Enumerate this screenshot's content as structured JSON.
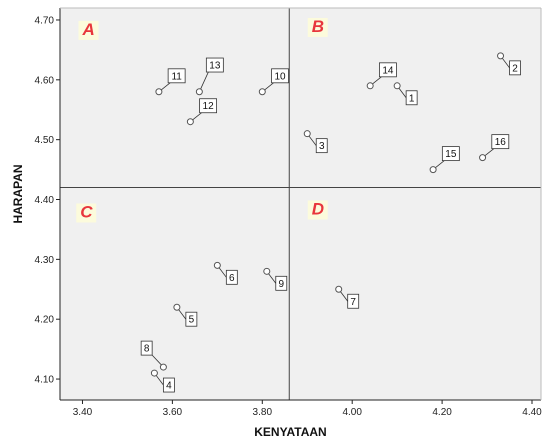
{
  "chart_data": {
    "type": "scatter",
    "xlabel": "KENYATAAN",
    "ylabel": "HARAPAN",
    "xlim": [
      3.35,
      4.42
    ],
    "ylim": [
      4.065,
      4.72
    ],
    "xticks": [
      "3.40",
      "3.60",
      "3.80",
      "4.00",
      "4.20",
      "4.40"
    ],
    "yticks": [
      "4.10",
      "4.20",
      "4.30",
      "4.40",
      "4.50",
      "4.60",
      "4.70"
    ],
    "grid": false,
    "reference_lines": {
      "x": 3.86,
      "y": 4.42
    },
    "quadrant_labels": [
      {
        "text": "A",
        "x": 3.4,
        "y": 4.675
      },
      {
        "text": "B",
        "x": 3.91,
        "y": 4.68
      },
      {
        "text": "C",
        "x": 3.395,
        "y": 4.37
      },
      {
        "text": "D",
        "x": 3.91,
        "y": 4.375
      }
    ],
    "points": [
      {
        "label": "1",
        "x": 4.1,
        "y": 4.59,
        "lx": 4.12,
        "ly": 4.57
      },
      {
        "label": "2",
        "x": 4.33,
        "y": 4.64,
        "lx": 4.35,
        "ly": 4.62
      },
      {
        "label": "3",
        "x": 3.9,
        "y": 4.51,
        "lx": 3.92,
        "ly": 4.49
      },
      {
        "label": "4",
        "x": 3.56,
        "y": 4.11,
        "lx": 3.58,
        "ly": 4.09
      },
      {
        "label": "5",
        "x": 3.61,
        "y": 4.22,
        "lx": 3.63,
        "ly": 4.2
      },
      {
        "label": "6",
        "x": 3.7,
        "y": 4.29,
        "lx": 3.72,
        "ly": 4.27
      },
      {
        "label": "7",
        "x": 3.97,
        "y": 4.25,
        "lx": 3.99,
        "ly": 4.23
      },
      {
        "label": "8",
        "x": 3.58,
        "y": 4.12,
        "lx": 3.555,
        "ly": 4.14
      },
      {
        "label": "9",
        "x": 3.81,
        "y": 4.28,
        "lx": 3.83,
        "ly": 4.26
      },
      {
        "label": "10",
        "x": 3.8,
        "y": 4.58,
        "lx": 3.825,
        "ly": 4.595
      },
      {
        "label": "11",
        "x": 3.57,
        "y": 4.58,
        "lx": 3.595,
        "ly": 4.595
      },
      {
        "label": "12",
        "x": 3.64,
        "y": 4.53,
        "lx": 3.665,
        "ly": 4.545
      },
      {
        "label": "13",
        "x": 3.66,
        "y": 4.58,
        "lx": 3.68,
        "ly": 4.613
      },
      {
        "label": "14",
        "x": 4.04,
        "y": 4.59,
        "lx": 4.065,
        "ly": 4.605
      },
      {
        "label": "15",
        "x": 4.18,
        "y": 4.45,
        "lx": 4.205,
        "ly": 4.465
      },
      {
        "label": "16",
        "x": 4.29,
        "y": 4.47,
        "lx": 4.315,
        "ly": 4.485
      }
    ]
  },
  "colors": {
    "plot_background": "#f0f0f0",
    "axis": "#222222",
    "reference_line": "#444444",
    "marker": "#555555",
    "quadrant_text": "#e8363d",
    "quadrant_highlight": "#fcfbdc"
  }
}
